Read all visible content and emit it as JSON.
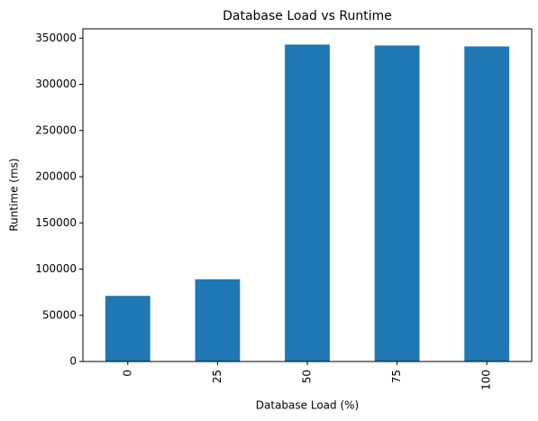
{
  "chart_data": {
    "type": "bar",
    "title": "Database Load vs Runtime",
    "x_label": "Database Load (%)",
    "y_label": "Runtime (ms)",
    "categories": [
      "0",
      "25",
      "50",
      "75",
      "100"
    ],
    "values": [
      71000,
      89000,
      343000,
      342000,
      341000
    ],
    "color": "#1f77b4",
    "ylim": [
      0,
      360000
    ],
    "yticks": [
      0,
      50000,
      100000,
      150000,
      200000,
      250000,
      300000,
      350000
    ]
  }
}
